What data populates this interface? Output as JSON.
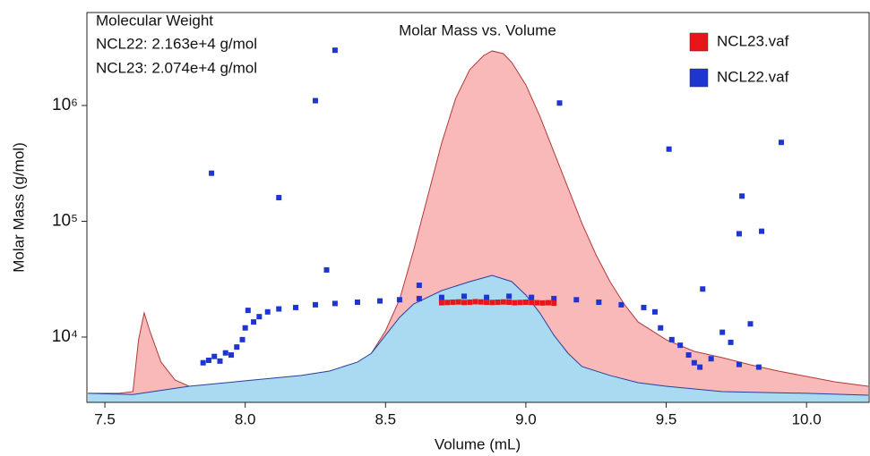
{
  "chart_data": {
    "type": "scatter",
    "title": "Molar Mass vs. Volume",
    "x_label": "Volume (mL)",
    "y_label": "Molar Mass (g/mol)",
    "annotations": [
      "Molecular Weight",
      "NCL22: 2.163e+4 g/mol",
      "NCL23: 2.074e+4 g/mol"
    ],
    "yscale": "log",
    "xlim": [
      7.436,
      10.223
    ],
    "ylim": [
      2730,
      6350000
    ],
    "xticks": [
      7.5,
      {
        "value": 8,
        "label": "8.0"
      },
      8.5,
      {
        "value": 9,
        "label": "9.0"
      },
      9.5,
      {
        "value": 10,
        "label": "10.0"
      }
    ],
    "yticks": [
      {
        "value": 10000,
        "label": "10⁴"
      },
      {
        "value": 100000,
        "label": "10⁵"
      },
      {
        "value": 1000000,
        "label": "10⁶"
      }
    ],
    "legend": "top-right",
    "areas": [
      {
        "color": "#f9b9b9",
        "line_color": "#b03a3a",
        "x": [
          7.44,
          7.55,
          7.6,
          7.62,
          7.64,
          7.66,
          7.7,
          7.75,
          7.8,
          7.9,
          8.0,
          8.2,
          8.3,
          8.4,
          8.45,
          8.5,
          8.55,
          8.6,
          8.65,
          8.7,
          8.75,
          8.8,
          8.85,
          8.88,
          8.92,
          8.95,
          9.0,
          9.05,
          9.1,
          9.15,
          9.2,
          9.25,
          9.3,
          9.35,
          9.4,
          9.5,
          9.6,
          9.7,
          9.8,
          9.9,
          10.0,
          10.1,
          10.22
        ],
        "values": [
          3266,
          3266,
          3381,
          9480,
          16150,
          11320,
          6080,
          4260,
          3760,
          3500,
          3500,
          3760,
          4260,
          5560,
          7260,
          11320,
          21100,
          56100,
          163000,
          474000,
          1153000,
          2037000,
          2706000,
          2958000,
          2803000,
          2350000,
          1506000,
          807000,
          396000,
          195000,
          95700,
          51300,
          30100,
          19300,
          13500,
          9480,
          7520,
          6640,
          5760,
          5090,
          4570,
          4110,
          3760
        ]
      },
      {
        "color": "#a9daf2",
        "line_color": "#2a3f9a",
        "x": [
          7.44,
          7.6,
          7.8,
          8.0,
          8.2,
          8.3,
          8.4,
          8.45,
          8.5,
          8.55,
          8.6,
          8.7,
          8.8,
          8.88,
          8.95,
          9.0,
          9.05,
          9.1,
          9.15,
          9.2,
          9.3,
          9.4,
          9.5,
          9.7,
          10.0,
          10.22
        ],
        "values": [
          3266,
          3190,
          3760,
          4190,
          4660,
          5090,
          6080,
          7260,
          10360,
          14790,
          19300,
          25200,
          30100,
          34100,
          30100,
          23060,
          16150,
          10360,
          7260,
          5560,
          4660,
          4040,
          3760,
          3381,
          3266,
          3150
        ]
      }
    ],
    "series": [
      {
        "name": "NCL23.vaf",
        "color": "#e8161b",
        "x": [
          8.7,
          8.72,
          8.74,
          8.76,
          8.78,
          8.8,
          8.82,
          8.84,
          8.86,
          8.88,
          8.9,
          8.92,
          8.94,
          8.96,
          8.98,
          9.0,
          9.02,
          9.04,
          9.06,
          9.08,
          9.1
        ],
        "values": [
          19800,
          19900,
          20000,
          20100,
          19900,
          20000,
          20200,
          20100,
          20000,
          19900,
          20000,
          20100,
          20000,
          19800,
          19900,
          20000,
          19900,
          19800,
          19700,
          19800,
          19600
        ]
      },
      {
        "name": "NCL22.vaf",
        "color": "#1f35d0",
        "x": [
          7.85,
          7.87,
          7.89,
          7.91,
          7.93,
          7.95,
          7.97,
          7.99,
          8.0,
          8.01,
          8.03,
          8.05,
          8.08,
          8.12,
          8.18,
          8.25,
          8.32,
          8.4,
          8.48,
          8.55,
          8.62,
          8.7,
          8.78,
          8.86,
          8.94,
          9.02,
          9.1,
          9.18,
          9.26,
          9.34,
          9.42,
          9.46,
          9.48,
          9.52,
          9.55,
          9.58,
          9.6,
          9.62,
          9.66,
          9.7,
          9.73,
          9.76,
          9.8,
          9.83,
          7.88,
          8.12,
          8.25,
          8.32,
          8.29,
          9.12,
          9.51,
          9.77,
          9.76,
          9.84,
          9.91,
          9.63,
          8.62
        ],
        "values": [
          6000,
          6300,
          6800,
          6200,
          7300,
          7000,
          8200,
          9500,
          12000,
          17000,
          13500,
          15000,
          16500,
          17500,
          18000,
          19000,
          19500,
          20000,
          20500,
          21000,
          21500,
          22000,
          22500,
          22000,
          22500,
          22000,
          21500,
          21000,
          20000,
          19000,
          18000,
          16500,
          12000,
          9500,
          8500,
          7000,
          6000,
          5500,
          6500,
          11000,
          9000,
          5800,
          13000,
          5500,
          260000,
          160000,
          1100000,
          3000000,
          38000,
          1050000,
          420000,
          165000,
          78000,
          82000,
          480000,
          26000,
          28000
        ]
      }
    ]
  }
}
